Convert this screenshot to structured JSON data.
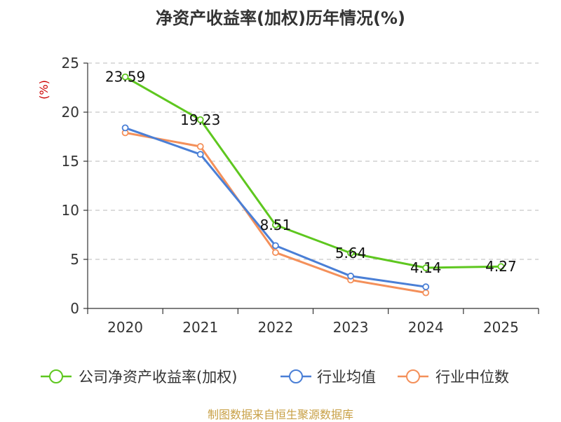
{
  "title": "净资产收益率(加权)历年情况(%)",
  "source": "制图数据来自恒生聚源数据库",
  "chart_data": {
    "type": "line",
    "title": "净资产收益率(加权)历年情况(%)",
    "ylabel": "(%)",
    "xlabel": "",
    "categories": [
      "2020",
      "2021",
      "2022",
      "2023",
      "2024",
      "2025"
    ],
    "ylim": [
      0,
      25
    ],
    "yticks": [
      "0",
      "5",
      "10",
      "15",
      "20",
      "25"
    ],
    "grid": true,
    "legend_position": "bottom",
    "series": [
      {
        "name": "公司净资产收益率(加权)",
        "color": "#5ec71f",
        "values": [
          23.59,
          19.23,
          8.51,
          5.64,
          4.14,
          4.27
        ],
        "labels": [
          "23.59",
          "19.23",
          "8.51",
          "5.64",
          "4.14",
          "4.27"
        ],
        "show_labels": true
      },
      {
        "name": "行业均值",
        "color": "#4a7fd6",
        "values": [
          18.4,
          15.7,
          6.4,
          3.3,
          2.2,
          null
        ],
        "show_labels": false
      },
      {
        "name": "行业中位数",
        "color": "#f4905a",
        "values": [
          17.9,
          16.5,
          5.7,
          2.9,
          1.6,
          null
        ],
        "show_labels": false
      }
    ]
  }
}
